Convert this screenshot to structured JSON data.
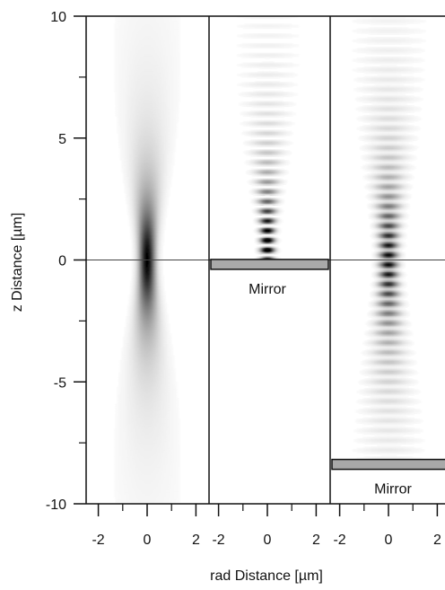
{
  "chart_data": {
    "type": "heatmap",
    "xlabel": "rad Distance [µm]",
    "ylabel": "z Distance [µm]",
    "ylim": [
      -10,
      10
    ],
    "y_ticks": [
      10,
      5,
      0,
      -5,
      -10
    ],
    "grid": false,
    "colormap": "grayscale (white = 0, black = max intensity)",
    "panels": [
      {
        "xlim": [
          -2.5,
          2.5
        ],
        "x_ticks": [
          -2,
          0,
          2
        ],
        "pattern": "focused Gaussian beam",
        "peak_z": 0,
        "mirror_label": "",
        "mirror_z": null
      },
      {
        "xlim": [
          -2.5,
          2.5
        ],
        "x_ticks": [
          -2,
          0,
          2
        ],
        "pattern": "standing-wave fringes above mirror",
        "peak_z": 0.6,
        "mirror_label": "Mirror",
        "mirror_z": -0.2
      },
      {
        "xlim": [
          -2.5,
          2.5
        ],
        "x_ticks": [
          -2,
          0,
          2
        ],
        "pattern": "standing-wave fringes above distant mirror",
        "peak_z": 0,
        "mirror_label": "Mirror",
        "mirror_z": -8.4
      }
    ]
  },
  "colors": {
    "mirror_fill": "#a9a9a9",
    "axis": "#111111",
    "zero_line": "#444444"
  }
}
